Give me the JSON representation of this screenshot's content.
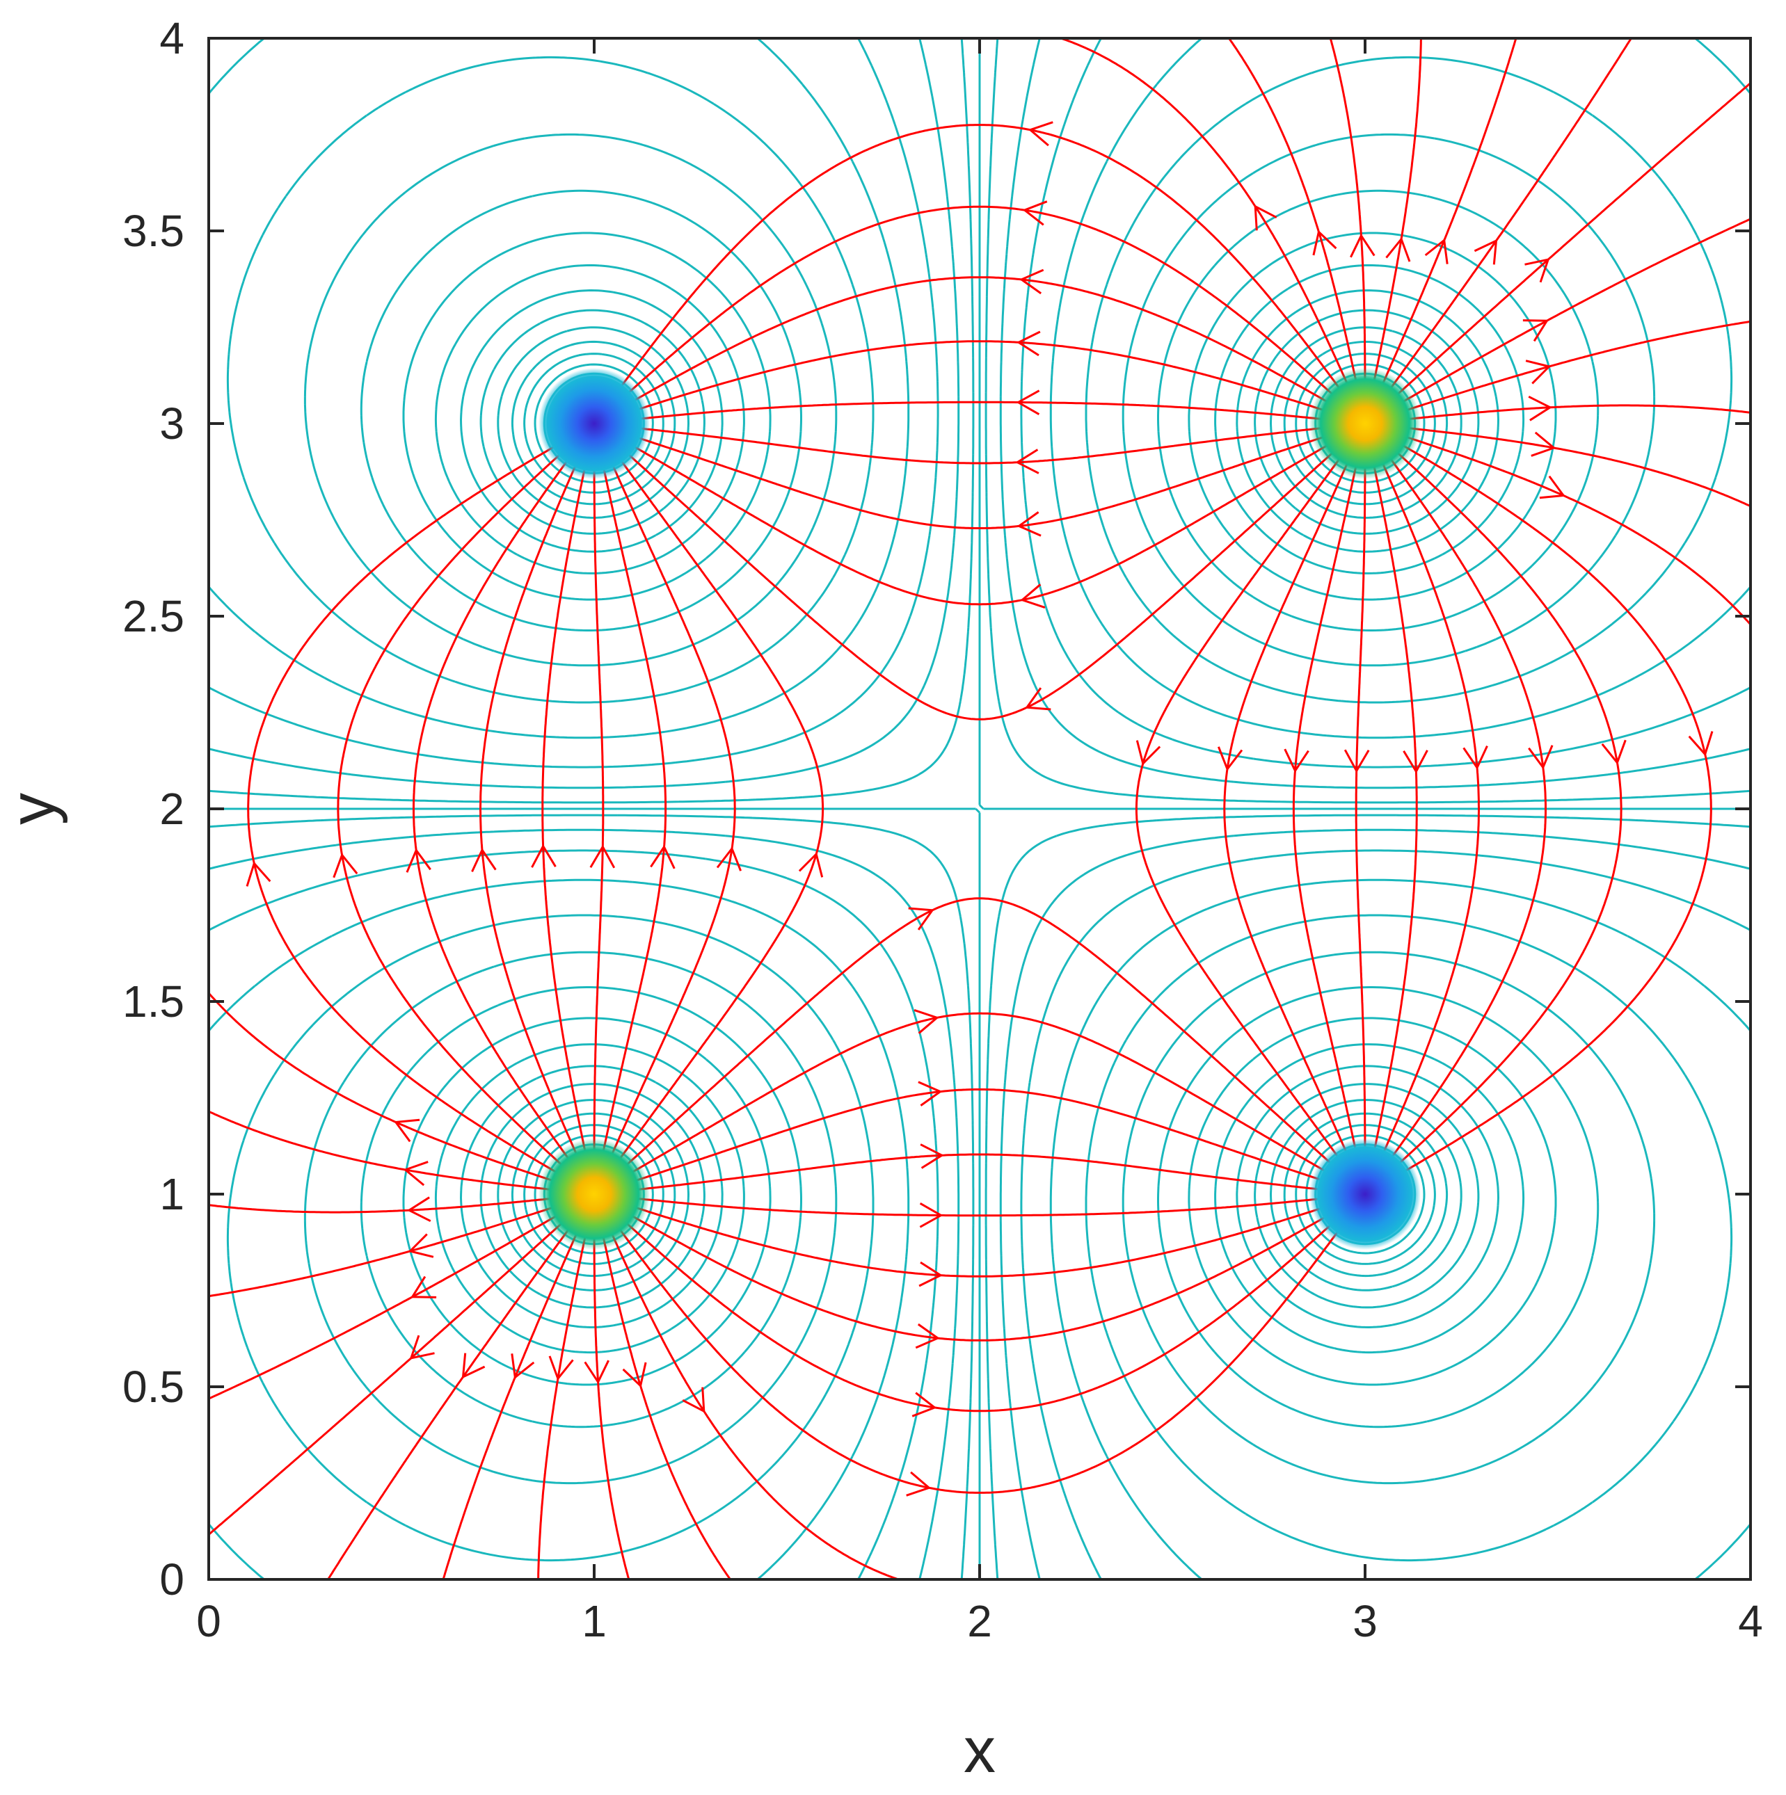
{
  "chart_data": {
    "type": "contour",
    "xlabel": "x",
    "ylabel": "y",
    "xlim": [
      0,
      4
    ],
    "ylim": [
      0,
      4
    ],
    "xticks": [
      "0",
      "1",
      "2",
      "3",
      "4"
    ],
    "yticks": [
      "0",
      "0.5",
      "1",
      "1.5",
      "2",
      "2.5",
      "3",
      "3.5",
      "4"
    ],
    "grid": false,
    "legend": "none",
    "charges": [
      {
        "x": 1,
        "y": 3,
        "sign": -1
      },
      {
        "x": 3,
        "y": 3,
        "sign": 1
      },
      {
        "x": 1,
        "y": 1,
        "sign": 1
      },
      {
        "x": 3,
        "y": 1,
        "sign": -1
      }
    ],
    "overlays": [
      {
        "type": "equipotential_contours",
        "color": "#1ab8bd"
      },
      {
        "type": "field_streamlines",
        "color": "#ff0000"
      }
    ],
    "colors": {
      "axis": "#262626",
      "contour": "#1ab8bd",
      "streamline": "#ff0000",
      "positive_core": "#ffd200",
      "negative_core": "#3c1ec8"
    }
  }
}
